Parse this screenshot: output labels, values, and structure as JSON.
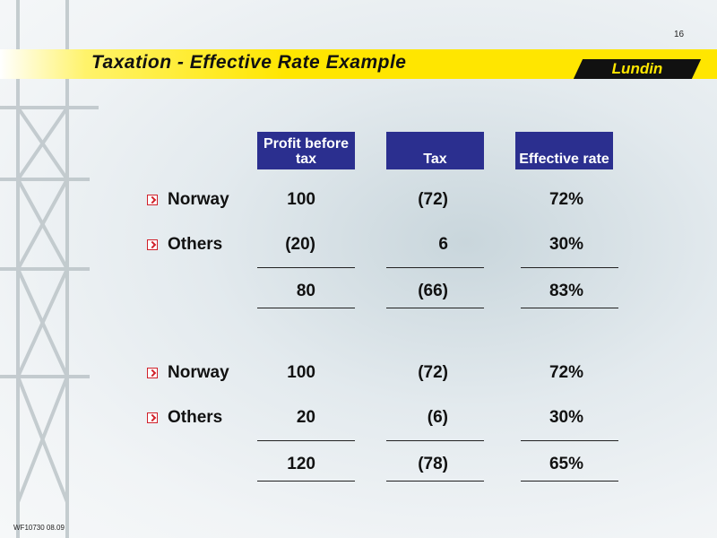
{
  "page_number": "16",
  "title": "Taxation - Effective Rate Example",
  "logo": "Lundin",
  "footer": "WF10730 08.09",
  "table": {
    "headers": [
      "Profit before tax",
      "Tax",
      "Effective rate"
    ],
    "sections": [
      {
        "rows": [
          [
            "Norway",
            "100",
            "(72)",
            "72%"
          ],
          [
            "Others",
            "(20)",
            "6",
            "30%"
          ]
        ],
        "total": [
          "80",
          "(66)",
          "83%"
        ]
      },
      {
        "rows": [
          [
            "Norway",
            "100",
            "(72)",
            "72%"
          ],
          [
            "Others",
            "20",
            "(6)",
            "30%"
          ]
        ],
        "total": [
          "120",
          "(78)",
          "65%"
        ]
      }
    ]
  }
}
